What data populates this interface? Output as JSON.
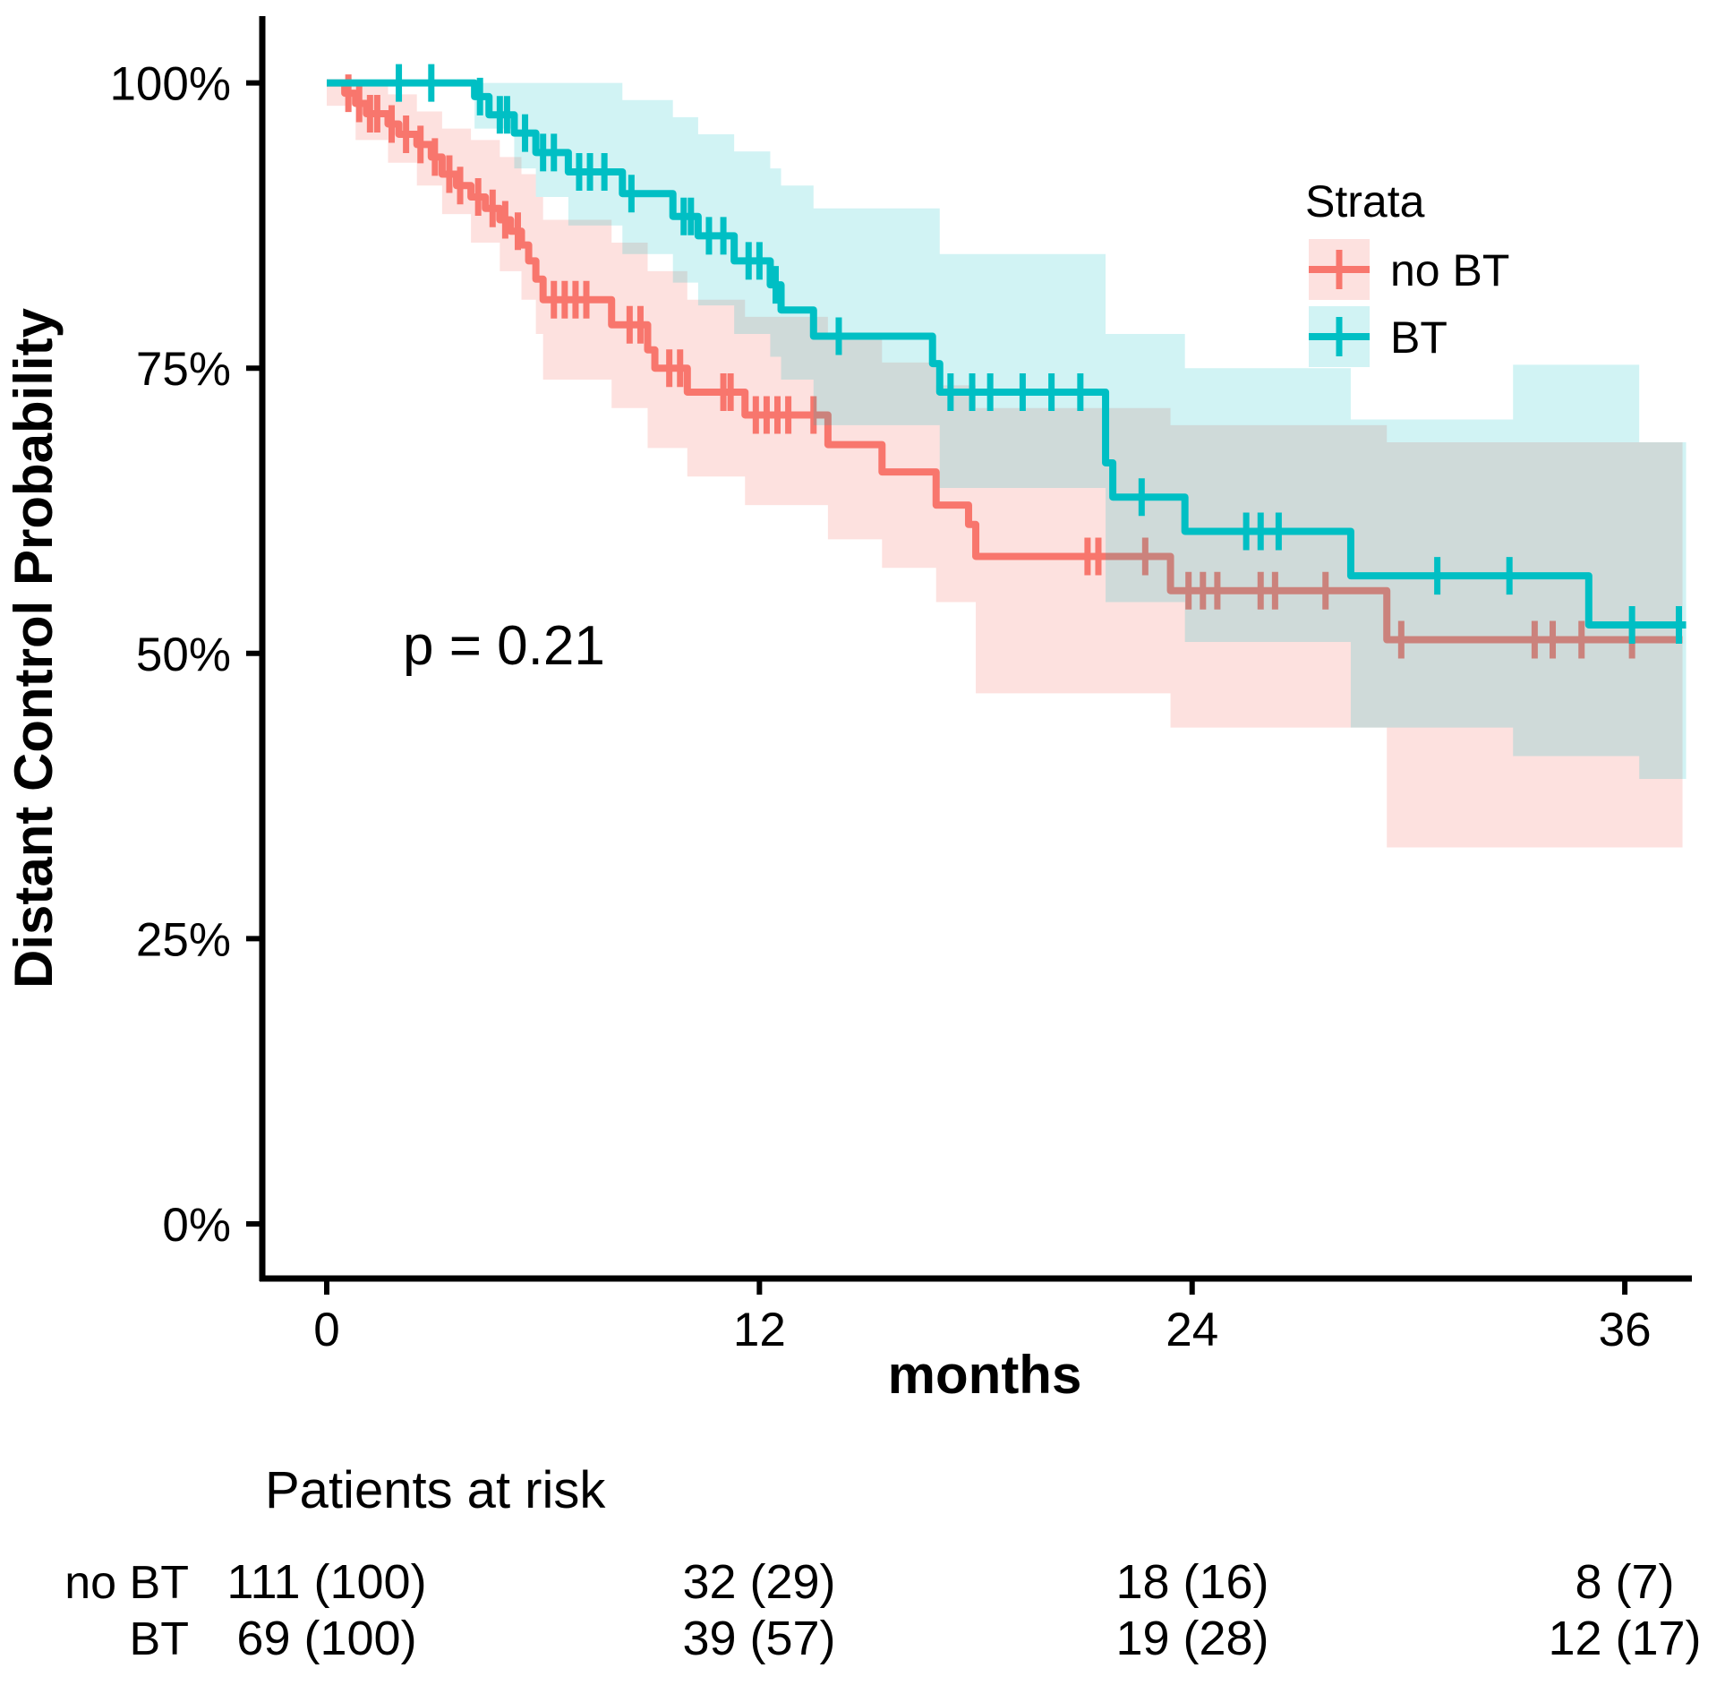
{
  "chart_data": {
    "type": "km_step_survival",
    "xlabel": "months",
    "ylabel": "Distant Control Probability",
    "pvalue_text": "p = 0.21",
    "xlim": [
      -1.8,
      37.85
    ],
    "ylim": [
      -5,
      105
    ],
    "grid": false,
    "x_axis": {
      "ticks": [
        {
          "v": 0,
          "label": "0"
        },
        {
          "v": 12,
          "label": "12"
        },
        {
          "v": 24,
          "label": "24"
        },
        {
          "v": 36,
          "label": "36"
        }
      ]
    },
    "y_axis": {
      "ticks": [
        {
          "v": 0,
          "label": "0%"
        },
        {
          "v": 25,
          "label": "25%"
        },
        {
          "v": 50,
          "label": "50%"
        },
        {
          "v": 75,
          "label": "75%"
        },
        {
          "v": 100,
          "label": "100%"
        }
      ]
    },
    "legend": {
      "title": "Strata",
      "position": "inside-top-right",
      "entries": [
        {
          "label": "no BT",
          "color": "#F8766D",
          "fill": "rgba(248,118,109,0.22)"
        },
        {
          "label": "BT",
          "color": "#00BFC4",
          "fill": "rgba(0,191,196,0.18)"
        }
      ]
    },
    "series": [
      {
        "name": "no BT",
        "color": "#F8766D",
        "ribbon_fill": "rgba(248,118,109,0.22)",
        "end_month": 37.6,
        "steps": [
          [
            0,
            100
          ],
          [
            0.5,
            99.1
          ],
          [
            0.8,
            98.2
          ],
          [
            1.1,
            97.3
          ],
          [
            1.7,
            96.4
          ],
          [
            2.0,
            95.5
          ],
          [
            2.5,
            94.6
          ],
          [
            2.9,
            93.5
          ],
          [
            3.2,
            92.0
          ],
          [
            3.6,
            91.0
          ],
          [
            4.0,
            90.0
          ],
          [
            4.4,
            89.0
          ],
          [
            4.8,
            88.0
          ],
          [
            5.1,
            87.0
          ],
          [
            5.4,
            85.8
          ],
          [
            5.6,
            84.4
          ],
          [
            5.8,
            82.8
          ],
          [
            6.0,
            81.0
          ],
          [
            7.9,
            78.8
          ],
          [
            8.9,
            76.6
          ],
          [
            9.1,
            75.0
          ],
          [
            10.0,
            72.9
          ],
          [
            11.6,
            70.9
          ],
          [
            13.9,
            68.3
          ],
          [
            15.4,
            65.9
          ],
          [
            16.9,
            63.0
          ],
          [
            17.8,
            61.3
          ],
          [
            18.0,
            58.5
          ],
          [
            23.4,
            55.5
          ],
          [
            29.4,
            51.2
          ]
        ],
        "censors": [
          [
            0.6,
            99.1
          ],
          [
            0.9,
            98.2
          ],
          [
            1.2,
            97.3
          ],
          [
            1.4,
            97.3
          ],
          [
            1.8,
            96.4
          ],
          [
            2.2,
            95.5
          ],
          [
            2.6,
            94.6
          ],
          [
            3.0,
            93.5
          ],
          [
            3.4,
            92.0
          ],
          [
            3.7,
            91.0
          ],
          [
            4.2,
            90.0
          ],
          [
            4.6,
            89.0
          ],
          [
            4.95,
            88.0
          ],
          [
            5.3,
            87.0
          ],
          [
            6.3,
            81.0
          ],
          [
            6.6,
            81.0
          ],
          [
            6.9,
            81.0
          ],
          [
            7.2,
            81.0
          ],
          [
            8.4,
            78.8
          ],
          [
            8.7,
            78.8
          ],
          [
            9.5,
            75.0
          ],
          [
            9.8,
            75.0
          ],
          [
            11.0,
            72.9
          ],
          [
            11.2,
            72.9
          ],
          [
            11.9,
            70.9
          ],
          [
            12.2,
            70.9
          ],
          [
            12.5,
            70.9
          ],
          [
            12.8,
            70.9
          ],
          [
            13.5,
            70.9
          ],
          [
            21.1,
            58.5
          ],
          [
            21.4,
            58.5
          ],
          [
            22.7,
            58.5
          ],
          [
            23.9,
            55.5
          ],
          [
            24.3,
            55.5
          ],
          [
            24.7,
            55.5
          ],
          [
            25.9,
            55.5
          ],
          [
            26.3,
            55.5
          ],
          [
            27.7,
            55.5
          ],
          [
            29.8,
            51.2
          ],
          [
            33.5,
            51.2
          ],
          [
            34.0,
            51.2
          ],
          [
            34.8,
            51.2
          ],
          [
            36.2,
            51.2
          ]
        ],
        "ribbon": [
          [
            0,
            100,
            98
          ],
          [
            0.8,
            100,
            95
          ],
          [
            1.7,
            99,
            93
          ],
          [
            2.5,
            97.5,
            91
          ],
          [
            3.2,
            96,
            88.5
          ],
          [
            4.0,
            95,
            86
          ],
          [
            4.8,
            93.5,
            83.5
          ],
          [
            5.4,
            92,
            81
          ],
          [
            5.8,
            90,
            78
          ],
          [
            6.0,
            88,
            74
          ],
          [
            7.9,
            86,
            71.5
          ],
          [
            8.9,
            83.5,
            68
          ],
          [
            10.0,
            81,
            65.5
          ],
          [
            11.6,
            79.5,
            63
          ],
          [
            13.9,
            77.5,
            60
          ],
          [
            15.4,
            75.5,
            57.5
          ],
          [
            16.9,
            73.5,
            54.5
          ],
          [
            18.0,
            71.5,
            46.5
          ],
          [
            23.4,
            70,
            43.5
          ],
          [
            29.4,
            68.5,
            33
          ]
        ]
      },
      {
        "name": "BT",
        "color": "#00BFC4",
        "ribbon_fill": "rgba(0,191,196,0.18)",
        "end_month": 37.7,
        "steps": [
          [
            0,
            100
          ],
          [
            4.1,
            98.8
          ],
          [
            4.5,
            97.2
          ],
          [
            5.2,
            95.6
          ],
          [
            5.8,
            93.9
          ],
          [
            6.7,
            92.2
          ],
          [
            8.2,
            90.3
          ],
          [
            9.6,
            88.3
          ],
          [
            10.3,
            86.6
          ],
          [
            11.3,
            84.4
          ],
          [
            12.3,
            82.3
          ],
          [
            12.6,
            80.1
          ],
          [
            13.5,
            77.8
          ],
          [
            16.8,
            75.4
          ],
          [
            17.0,
            72.9
          ],
          [
            21.6,
            66.7
          ],
          [
            21.8,
            63.7
          ],
          [
            23.8,
            60.7
          ],
          [
            28.4,
            56.8
          ],
          [
            35.0,
            52.5
          ]
        ],
        "censors": [
          [
            2.0,
            100
          ],
          [
            2.9,
            100
          ],
          [
            4.25,
            98.8
          ],
          [
            4.8,
            97.2
          ],
          [
            5.0,
            97.2
          ],
          [
            5.5,
            95.6
          ],
          [
            6.0,
            93.9
          ],
          [
            6.3,
            93.9
          ],
          [
            7.0,
            92.2
          ],
          [
            7.3,
            92.2
          ],
          [
            7.7,
            92.2
          ],
          [
            8.45,
            90.3
          ],
          [
            9.9,
            88.3
          ],
          [
            10.1,
            88.3
          ],
          [
            10.6,
            86.6
          ],
          [
            11.0,
            86.6
          ],
          [
            11.7,
            84.4
          ],
          [
            12.0,
            84.4
          ],
          [
            12.45,
            82.3
          ],
          [
            14.2,
            77.8
          ],
          [
            17.3,
            72.9
          ],
          [
            17.9,
            72.9
          ],
          [
            18.4,
            72.9
          ],
          [
            19.3,
            72.9
          ],
          [
            20.1,
            72.9
          ],
          [
            20.9,
            72.9
          ],
          [
            22.6,
            63.7
          ],
          [
            25.5,
            60.7
          ],
          [
            25.9,
            60.7
          ],
          [
            26.4,
            60.7
          ],
          [
            30.8,
            56.8
          ],
          [
            32.8,
            56.8
          ],
          [
            36.2,
            52.5
          ],
          [
            37.5,
            52.5
          ]
        ],
        "ribbon": [
          [
            0,
            100,
            100
          ],
          [
            4.1,
            100,
            96
          ],
          [
            5.2,
            100,
            92.5
          ],
          [
            5.8,
            100,
            90
          ],
          [
            6.7,
            100,
            87.5
          ],
          [
            8.2,
            98.5,
            85
          ],
          [
            9.6,
            97,
            82.5
          ],
          [
            10.3,
            95.5,
            80.5
          ],
          [
            11.3,
            94,
            78
          ],
          [
            12.3,
            92.5,
            76
          ],
          [
            12.6,
            91,
            74
          ],
          [
            13.5,
            89,
            70
          ],
          [
            17.0,
            85,
            64.5
          ],
          [
            21.6,
            78,
            54.5
          ],
          [
            23.8,
            75,
            51
          ],
          [
            28.4,
            70.5,
            43.5
          ],
          [
            32.9,
            75.3,
            41
          ],
          [
            36.4,
            68.5,
            39
          ]
        ]
      }
    ],
    "risk_table": {
      "title": "Patients at risk",
      "columns": [
        0,
        12,
        24,
        36
      ],
      "rows": [
        {
          "label": "no BT",
          "color": "#F8766D",
          "values": [
            "111 (100)",
            "32 (29)",
            "18 (16)",
            "8 (7)"
          ]
        },
        {
          "label": "BT",
          "color": "#00BFC4",
          "values": [
            "69 (100)",
            "39 (57)",
            "19 (28)",
            "12 (17)"
          ]
        }
      ]
    }
  }
}
